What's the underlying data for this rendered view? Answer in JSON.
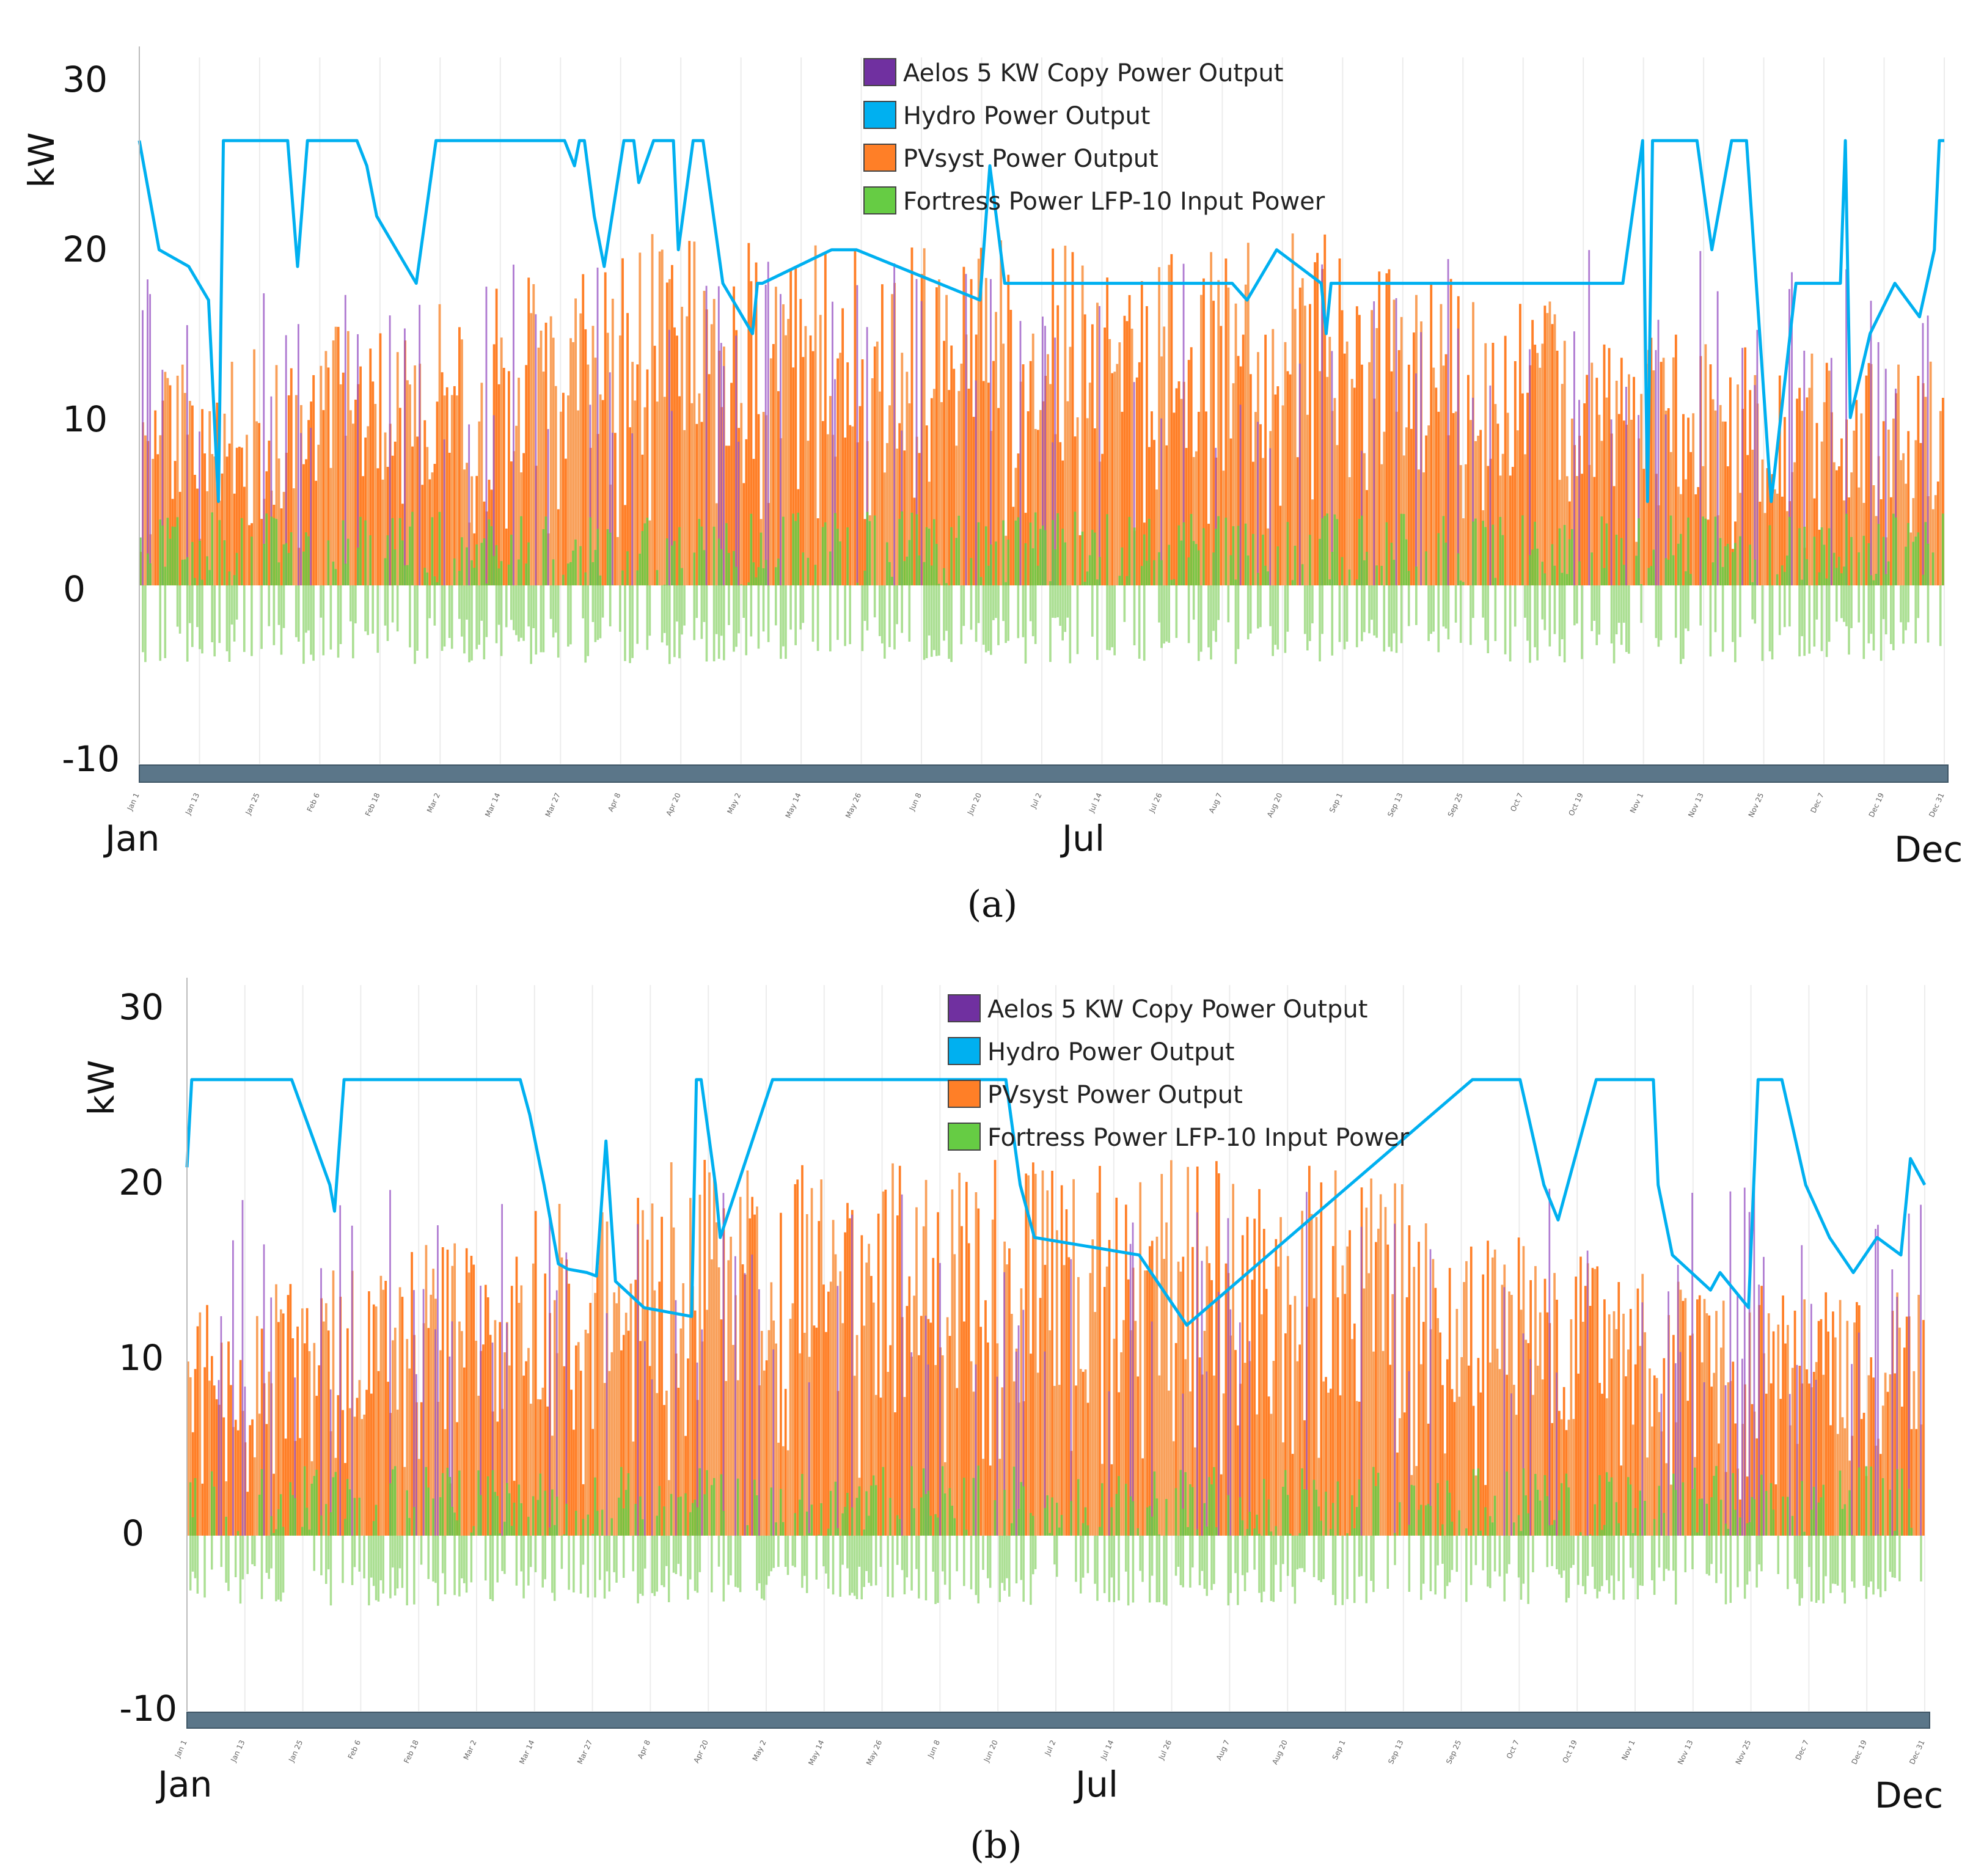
{
  "chart_data": [
    {
      "type": "area",
      "panel_label": "(a)",
      "ylabel": "kW",
      "ylim": [
        -10,
        30
      ],
      "yticks": [
        30,
        20,
        10,
        0,
        -10
      ],
      "month_labels": [
        "Jan",
        "Jul",
        "Dec"
      ],
      "minor_ticks": [
        "Jan 1",
        "Jan 13",
        "Jan 25",
        "Feb 6",
        "Feb 18",
        "Mar 2",
        "Mar 14",
        "Mar 27",
        "Apr 8",
        "Apr 20",
        "May 2",
        "May 14",
        "May 26",
        "Jun 8",
        "Jun 20",
        "Jul 2",
        "Jul 14",
        "Jul 26",
        "Aug 7",
        "Aug 20",
        "Sep 1",
        "Sep 13",
        "Sep 25",
        "Oct 7",
        "Oct 19",
        "Nov 1",
        "Nov 13",
        "Nov 25",
        "Dec 7",
        "Dec 19",
        "Dec 31"
      ],
      "legend": [
        {
          "label": "Aelos 5 KW Copy Power Output",
          "color": "#7030a0"
        },
        {
          "label": "Hydro Power Output",
          "color": "#00b0f0"
        },
        {
          "label": "PVsyst Power Output",
          "color": "#ff7f27"
        },
        {
          "label": "Fortress Power LFP-10 Input Power",
          "color": "#66cc44"
        }
      ],
      "series": [
        {
          "name": "Hydro Power Output",
          "x_day": [
            0,
            4,
            10,
            14,
            16,
            17,
            30,
            32,
            34,
            36,
            44,
            46,
            48,
            56,
            60,
            62,
            65,
            66,
            86,
            88,
            89,
            90,
            92,
            94,
            98,
            100,
            101,
            104,
            108,
            109,
            112,
            114,
            118,
            124,
            125,
            126,
            140,
            145,
            170,
            172,
            175,
            185,
            195,
            200,
            205,
            210,
            219,
            220,
            221,
            224,
            230,
            239,
            240,
            241,
            260,
            265,
            270,
            280,
            285,
            295,
            300,
            304,
            305,
            306,
            315,
            318,
            322,
            325,
            330,
            335,
            340,
            344,
            345,
            346,
            350,
            355,
            360,
            363,
            364,
            365
          ],
          "kw": [
            26.5,
            20,
            19,
            17,
            5,
            26.5,
            26.5,
            19,
            26.5,
            26.5,
            26.5,
            25,
            22,
            18,
            26.5,
            26.5,
            26.5,
            26.5,
            26.5,
            25,
            26.5,
            26.5,
            22,
            19,
            26.5,
            26.5,
            24,
            26.5,
            26.5,
            20,
            26.5,
            26.5,
            18,
            15,
            18,
            18,
            20,
            20,
            17,
            25,
            18,
            18,
            18,
            18,
            18,
            18,
            18,
            18,
            18,
            17,
            20,
            18,
            15,
            18,
            18,
            18,
            18,
            18,
            18,
            18,
            18,
            26.5,
            5,
            26.5,
            26.5,
            20,
            26.5,
            26.5,
            5,
            18,
            18,
            18,
            26.5,
            10,
            15,
            18,
            16,
            20,
            26.5,
            26.5
          ]
        },
        {
          "name": "PVsyst Power Output",
          "range_kw": [
            0,
            21
          ],
          "typical_kw": 17
        },
        {
          "name": "Aelos 5 KW Copy Power Output",
          "range_kw": [
            0,
            20
          ]
        },
        {
          "name": "Fortress Power LFP-10 Input Power",
          "range_kw": [
            -4.7,
            4.5
          ]
        }
      ]
    },
    {
      "type": "area",
      "panel_label": "(b)",
      "ylabel": "kW",
      "ylim": [
        -10,
        30
      ],
      "yticks": [
        30,
        20,
        10,
        0,
        -10
      ],
      "month_labels": [
        "Jan",
        "Jul",
        "Dec"
      ],
      "minor_ticks": [
        "Jan 1",
        "Jan 13",
        "Jan 25",
        "Feb 6",
        "Feb 18",
        "Mar 2",
        "Mar 14",
        "Mar 27",
        "Apr 8",
        "Apr 20",
        "May 2",
        "May 14",
        "May 26",
        "Jun 8",
        "Jun 20",
        "Jul 2",
        "Jul 14",
        "Jul 26",
        "Aug 7",
        "Aug 20",
        "Sep 1",
        "Sep 13",
        "Sep 25",
        "Oct 7",
        "Oct 19",
        "Nov 1",
        "Nov 13",
        "Nov 25",
        "Dec 7",
        "Dec 19",
        "Dec 31"
      ],
      "legend": [
        {
          "label": "Aelos 5 KW Copy Power Output",
          "color": "#7030a0"
        },
        {
          "label": "Hydro Power Output",
          "color": "#00b0f0"
        },
        {
          "label": "PVsyst Power Output",
          "color": "#ff7f27"
        },
        {
          "label": "Fortress Power LFP-10 Input Power",
          "color": "#66cc44"
        }
      ],
      "series": [
        {
          "name": "Hydro Power Output",
          "x_day": [
            0,
            1,
            22,
            30,
            31,
            33,
            70,
            72,
            75,
            78,
            80,
            84,
            86,
            88,
            90,
            96,
            106,
            107,
            108,
            111,
            112,
            123,
            160,
            150,
            152,
            170,
            172,
            175,
            178,
            200,
            210,
            270,
            280,
            285,
            288,
            296,
            300,
            302,
            305,
            305,
            308,
            309,
            312,
            320,
            322,
            328,
            330,
            335,
            340,
            345,
            350,
            355,
            360,
            362,
            365
          ],
          "kw": [
            21,
            26,
            26,
            20,
            18.5,
            26,
            26,
            24,
            20,
            15.5,
            15.2,
            15,
            14.8,
            22.5,
            14.5,
            13,
            12.5,
            26,
            26,
            20,
            17,
            26,
            26,
            26,
            26,
            26,
            26,
            20,
            17,
            16,
            12,
            26,
            26,
            20,
            18,
            26,
            26,
            26,
            26,
            26,
            26,
            20,
            16,
            14,
            15,
            13,
            26,
            26,
            20,
            17,
            15,
            17,
            16,
            21.5,
            20
          ]
        },
        {
          "name": "PVsyst Power Output",
          "range_kw": [
            0,
            21.5
          ],
          "typical_kw": 17
        },
        {
          "name": "Aelos 5 KW Copy Power Output",
          "range_kw": [
            0,
            20
          ]
        },
        {
          "name": "Fortress Power LFP-10 Input Power",
          "range_kw": [
            -4,
            4
          ]
        }
      ]
    }
  ]
}
